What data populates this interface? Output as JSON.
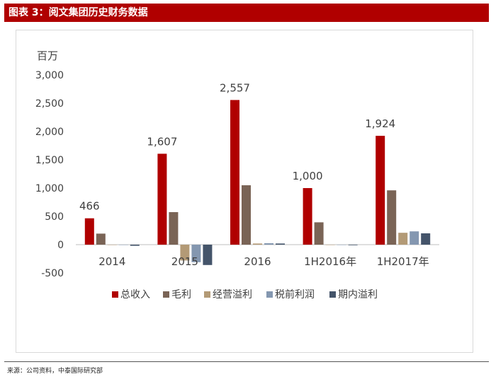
{
  "header": {
    "title": "图表 3：阅文集团历史财务数据"
  },
  "footer": {
    "source": "来源：公司资料，中泰国际研究部"
  },
  "chart_data": {
    "type": "bar",
    "title": "",
    "ylabel": "百万",
    "xlabel": "",
    "ylim": [
      -500,
      3000
    ],
    "yticks": [
      -500,
      0,
      500,
      1000,
      1500,
      2000,
      2500,
      3000
    ],
    "ytick_labels": [
      "-500",
      "0",
      "500",
      "1,000",
      "1,500",
      "2,000",
      "2,500",
      "3,000"
    ],
    "categories": [
      "2014",
      "2015",
      "2016",
      "1H2016年",
      "1H2017年"
    ],
    "series": [
      {
        "name": "总收入",
        "color": "#b00000",
        "values": [
          466,
          1607,
          2557,
          1000,
          1924
        ]
      },
      {
        "name": "毛利",
        "color": "#7a6456",
        "values": [
          195,
          575,
          1050,
          395,
          960
        ]
      },
      {
        "name": "经营溢利",
        "color": "#b39a76",
        "values": [
          0,
          -280,
          20,
          0,
          210
        ]
      },
      {
        "name": "税前利润",
        "color": "#8497b0",
        "values": [
          0,
          -310,
          25,
          0,
          235
        ]
      },
      {
        "name": "期内溢利",
        "color": "#44546a",
        "values": [
          -20,
          -360,
          20,
          -10,
          200
        ]
      }
    ],
    "data_labels": [
      "466",
      "1,607",
      "2,557",
      "1,000",
      "1,924"
    ],
    "legend_position": "bottom"
  }
}
